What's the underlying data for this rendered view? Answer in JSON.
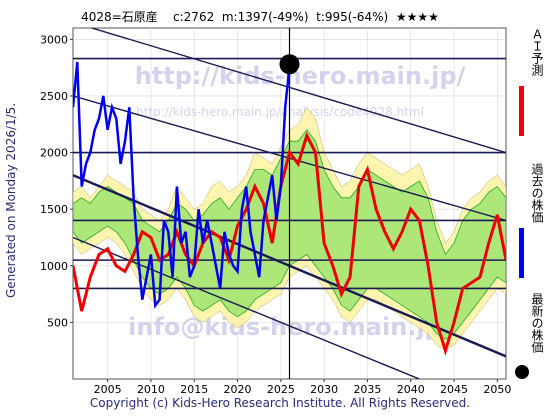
{
  "header": {
    "code": "4028=石原産",
    "current": "c:2762",
    "max": "m:1397(-49%)",
    "min": "t:995(-64%)",
    "stars": "★★★★"
  },
  "side_text": "Generated on Monday 2026/1/5.",
  "footer": "Copyright (c) Kids-Hero Research Institute. All Rights Reserved.",
  "watermarks": {
    "url": "http://kids-hero.main.jp/",
    "analysis_url": "http://kids-hero.main.jp/analysis/code4028.html",
    "email": "info@kids-hero.main.jp"
  },
  "legend": {
    "ai_forecast": "ＡＩ予測",
    "past_price": "過去の株価",
    "latest_price": "最新の株価"
  },
  "colors": {
    "past": "#0000ee",
    "ai": "#ee0000",
    "band_green": "#22aa22",
    "band_yellow": "#fff3a0",
    "grid": "#1a1a55",
    "latest_marker": "#000000"
  },
  "chart_data": {
    "type": "line",
    "xlim": [
      2001,
      2051
    ],
    "ylim": [
      0,
      3100
    ],
    "x_ticks": [
      2005,
      2010,
      2015,
      2020,
      2025,
      2030,
      2035,
      2040,
      2045,
      2050
    ],
    "y_ticks": [
      500,
      1000,
      1500,
      2000,
      2500,
      3000
    ],
    "hlines": [
      800,
      1050,
      1400,
      2000,
      2830
    ],
    "trend_lines": [
      {
        "x1": 2001,
        "y1": 3150,
        "x2": 2051,
        "y2": 2000
      },
      {
        "x1": 2001,
        "y1": 2500,
        "x2": 2051,
        "y2": 1400
      },
      {
        "x1": 2001,
        "y1": 1800,
        "x2": 2051,
        "y2": 200
      },
      {
        "x1": 2001,
        "y1": 1250,
        "x2": 2041,
        "y2": 0
      }
    ],
    "vline_x": 2026,
    "latest_point": {
      "x": 2026,
      "y": 2780
    },
    "series": [
      {
        "name": "過去の株価",
        "x": [
          2001,
          2001.5,
          2002,
          2002.5,
          2003,
          2003.5,
          2004,
          2004.5,
          2005,
          2005.5,
          2006,
          2006.5,
          2007,
          2007.5,
          2008,
          2008.5,
          2009,
          2009.5,
          2010,
          2010.5,
          2011,
          2011.5,
          2012,
          2012.5,
          2013,
          2013.5,
          2014,
          2014.5,
          2015,
          2015.5,
          2016,
          2016.5,
          2017,
          2017.5,
          2018,
          2018.5,
          2019,
          2019.5,
          2020,
          2020.5,
          2021,
          2021.5,
          2022,
          2022.5,
          2023,
          2023.5,
          2024,
          2024.5,
          2025,
          2025.5,
          2026
        ],
        "values": [
          2400,
          2800,
          1700,
          1900,
          2000,
          2200,
          2300,
          2500,
          2200,
          2400,
          2300,
          1900,
          2100,
          2400,
          1600,
          1100,
          700,
          900,
          1100,
          650,
          700,
          1400,
          1300,
          900,
          1700,
          1200,
          1300,
          900,
          1000,
          1500,
          1200,
          1400,
          1200,
          1000,
          800,
          1300,
          1100,
          1000,
          950,
          1500,
          1700,
          1300,
          1100,
          900,
          1400,
          1600,
          1800,
          1400,
          1700,
          2400,
          2760
        ]
      },
      {
        "name": "ＡＩ予測",
        "x": [
          2001,
          2002,
          2003,
          2004,
          2005,
          2006,
          2007,
          2008,
          2009,
          2010,
          2011,
          2012,
          2013,
          2014,
          2015,
          2016,
          2017,
          2018,
          2019,
          2020,
          2021,
          2022,
          2023,
          2024,
          2025,
          2026,
          2027,
          2028,
          2029,
          2030,
          2031,
          2032,
          2033,
          2034,
          2035,
          2036,
          2037,
          2038,
          2039,
          2040,
          2041,
          2042,
          2043,
          2044,
          2045,
          2046,
          2047,
          2048,
          2049,
          2050,
          2051
        ],
        "values": [
          1000,
          600,
          900,
          1100,
          1150,
          1000,
          950,
          1100,
          1300,
          1250,
          1050,
          1100,
          1300,
          1100,
          1000,
          1200,
          1300,
          1250,
          1050,
          1350,
          1500,
          1700,
          1550,
          1200,
          1700,
          2000,
          1900,
          2150,
          2000,
          1200,
          1000,
          750,
          900,
          1700,
          1850,
          1500,
          1300,
          1150,
          1300,
          1500,
          1400,
          1000,
          500,
          250,
          500,
          800,
          850,
          900,
          1200,
          1450,
          1050
        ]
      }
    ],
    "band_upper": [
      1650,
      1700,
      1600,
      1700,
      1800,
      1750,
      1700,
      1650,
      1500,
      1450,
      1400,
      1500,
      1700,
      1600,
      1500,
      1550,
      1700,
      1750,
      1650,
      1700,
      1800,
      2000,
      1950,
      1900,
      2050,
      2200,
      2250,
      2400,
      2300,
      2000,
      1850,
      1700,
      1750,
      1900,
      2000,
      1950,
      1900,
      1850,
      1800,
      1850,
      1900,
      1700,
      1400,
      1200,
      1300,
      1500,
      1600,
      1650,
      1750,
      1800,
      1700
    ],
    "band_lower": [
      1200,
      1100,
      1150,
      1200,
      1250,
      1200,
      1100,
      950,
      800,
      700,
      650,
      700,
      800,
      700,
      550,
      500,
      550,
      600,
      500,
      450,
      500,
      600,
      650,
      700,
      750,
      900,
      950,
      1000,
      900,
      800,
      700,
      550,
      500,
      600,
      700,
      700,
      650,
      600,
      550,
      500,
      450,
      400,
      300,
      250,
      300,
      400,
      500,
      600,
      700,
      800,
      750
    ],
    "green_upper": [
      1550,
      1600,
      1550,
      1650,
      1700,
      1650,
      1600,
      1550,
      1400,
      1350,
      1300,
      1400,
      1550,
      1500,
      1400,
      1450,
      1550,
      1600,
      1500,
      1600,
      1700,
      1850,
      1850,
      1800,
      1950,
      2100,
      2100,
      2200,
      2100,
      1850,
      1700,
      1600,
      1600,
      1700,
      1850,
      1800,
      1750,
      1700,
      1650,
      1700,
      1750,
      1600,
      1300,
      1100,
      1200,
      1400,
      1500,
      1550,
      1650,
      1700,
      1600
    ],
    "green_lower": [
      1300,
      1200,
      1250,
      1300,
      1350,
      1300,
      1200,
      1050,
      900,
      800,
      750,
      800,
      900,
      800,
      650,
      600,
      650,
      700,
      600,
      550,
      600,
      700,
      750,
      800,
      850,
      1000,
      1050,
      1100,
      1000,
      900,
      800,
      650,
      600,
      700,
      800,
      800,
      750,
      700,
      650,
      600,
      550,
      500,
      400,
      350,
      400,
      500,
      600,
      700,
      800,
      900,
      850
    ]
  }
}
